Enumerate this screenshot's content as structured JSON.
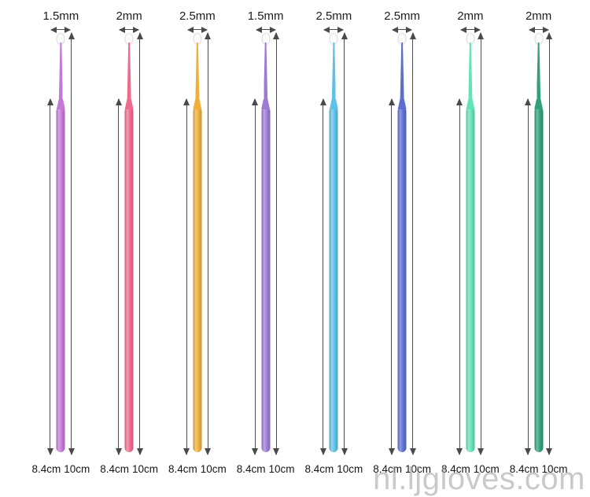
{
  "page": {
    "background": "#ffffff",
    "watermark": "nl.ljgloves.com",
    "arrow_color": "#4a4a4a"
  },
  "measurement_legend": {
    "handle_length": "8.4cm",
    "total_length": "10cm"
  },
  "brushes": [
    {
      "tip_size": "1.5mm",
      "length_short": "8.4cm",
      "length_long": "10cm",
      "color": "#c678d8"
    },
    {
      "tip_size": "2mm",
      "length_short": "8.4cm",
      "length_long": "10cm",
      "color": "#f06a8c"
    },
    {
      "tip_size": "2.5mm",
      "length_short": "8.4cm",
      "length_long": "10cm",
      "color": "#efb03a"
    },
    {
      "tip_size": "1.5mm",
      "length_short": "8.4cm",
      "length_long": "10cm",
      "color": "#9d7ad6"
    },
    {
      "tip_size": "2.5mm",
      "length_short": "8.4cm",
      "length_long": "10cm",
      "color": "#5fc0e8"
    },
    {
      "tip_size": "2.5mm",
      "length_short": "8.4cm",
      "length_long": "10cm",
      "color": "#5c6ed1"
    },
    {
      "tip_size": "2mm",
      "length_short": "8.4cm",
      "length_long": "10cm",
      "color": "#63e3b8"
    },
    {
      "tip_size": "2mm",
      "length_short": "8.4cm",
      "length_long": "10cm",
      "color": "#2fa077"
    }
  ]
}
